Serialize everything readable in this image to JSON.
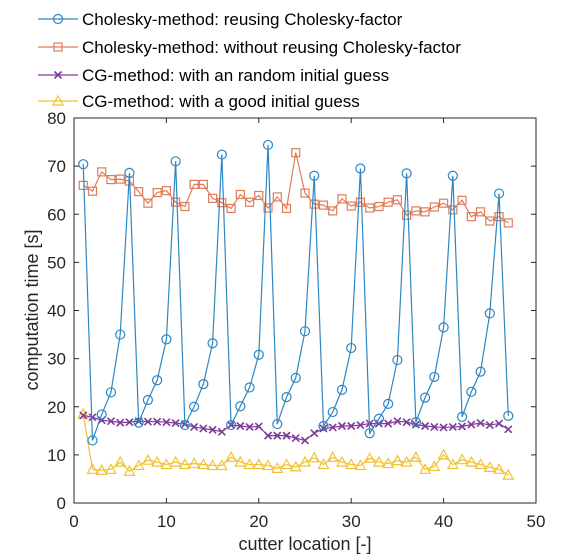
{
  "chart_data": {
    "type": "line",
    "xlabel": "cutter location [-]",
    "ylabel": "computation time [s]",
    "xlim": [
      0,
      50
    ],
    "ylim": [
      0,
      80
    ],
    "xticks": [
      0,
      10,
      20,
      30,
      40,
      50
    ],
    "yticks": [
      0,
      10,
      20,
      30,
      40,
      50,
      60,
      70,
      80
    ],
    "grid": false,
    "legend_position": "top-left, above plot",
    "series": [
      {
        "name": "Cholesky-method: reusing Cholesky-factor",
        "color": "#2e86c1",
        "marker": "circle",
        "x": [
          1,
          2,
          3,
          4,
          5,
          6,
          7,
          8,
          9,
          10,
          11,
          12,
          13,
          14,
          15,
          16,
          17,
          18,
          19,
          20,
          21,
          22,
          23,
          24,
          25,
          26,
          27,
          28,
          29,
          30,
          31,
          32,
          33,
          34,
          35,
          36,
          37,
          38,
          39,
          40,
          41,
          42,
          43,
          44,
          45,
          46,
          47
        ],
        "y": [
          70.4,
          13,
          18.4,
          23,
          35,
          68.6,
          16.7,
          21.4,
          25.5,
          34,
          71,
          16.2,
          20,
          24.7,
          33.2,
          72.4,
          16.2,
          20.1,
          24,
          30.8,
          74.4,
          16.4,
          22,
          26,
          35.7,
          68,
          16,
          18.9,
          23.5,
          32.2,
          69.5,
          14.5,
          17.5,
          20.6,
          29.7,
          68.5,
          16.8,
          21.9,
          26.2,
          36.5,
          68,
          17.9,
          23.1,
          27.3,
          39.4,
          64.3,
          18.1
        ]
      },
      {
        "name": "Cholesky-method: without reusing Cholesky-factor",
        "color": "#e07b5a",
        "marker": "square",
        "x": [
          1,
          2,
          3,
          4,
          5,
          6,
          7,
          8,
          9,
          10,
          11,
          12,
          13,
          14,
          15,
          16,
          17,
          18,
          19,
          20,
          21,
          22,
          23,
          24,
          25,
          26,
          27,
          28,
          29,
          30,
          31,
          32,
          33,
          34,
          35,
          36,
          37,
          38,
          39,
          40,
          41,
          42,
          43,
          44,
          45,
          46,
          47
        ],
        "y": [
          66,
          64.8,
          68.8,
          67.2,
          67.3,
          66.9,
          64.7,
          62.3,
          64.5,
          64.9,
          62.5,
          61.6,
          66.2,
          66.2,
          63.3,
          62.4,
          61.2,
          64.1,
          62.5,
          63.9,
          61.3,
          63.6,
          61.2,
          72.8,
          64.4,
          62.1,
          61.9,
          60.7,
          63.2,
          61.7,
          62.5,
          61.3,
          61.6,
          62.5,
          63,
          59.8,
          60.7,
          60.5,
          61.5,
          62.3,
          60.9,
          62.9,
          59.5,
          60.5,
          58.6,
          59.5,
          58.2
        ]
      },
      {
        "name": "CG-method: with an random initial guess",
        "color": "#7d3c98",
        "marker": "x",
        "x": [
          1,
          2,
          3,
          4,
          5,
          6,
          7,
          8,
          9,
          10,
          11,
          12,
          13,
          14,
          15,
          16,
          17,
          18,
          19,
          20,
          21,
          22,
          23,
          24,
          25,
          26,
          27,
          28,
          29,
          30,
          31,
          32,
          33,
          34,
          35,
          36,
          37,
          38,
          39,
          40,
          41,
          42,
          43,
          44,
          45,
          46,
          47
        ],
        "y": [
          18.2,
          17.8,
          17.2,
          17,
          16.7,
          16.8,
          17,
          16.9,
          16.9,
          16.8,
          16.6,
          16.4,
          15.8,
          15.5,
          15.2,
          14.8,
          16.2,
          16,
          15.8,
          15.9,
          14,
          14,
          14,
          13.5,
          13,
          14.5,
          15.5,
          15.7,
          16,
          16,
          16.2,
          16.5,
          16.5,
          16.5,
          17,
          16.8,
          16.3,
          16,
          15.8,
          15.7,
          15.8,
          15.9,
          16.3,
          16.6,
          16.2,
          16.5,
          15.3
        ]
      },
      {
        "name": "CG-method: with a good initial guess",
        "color": "#f1c232",
        "marker": "triangle",
        "x": [
          1,
          2,
          3,
          4,
          5,
          6,
          7,
          8,
          9,
          10,
          11,
          12,
          13,
          14,
          15,
          16,
          17,
          18,
          19,
          20,
          21,
          22,
          23,
          24,
          25,
          26,
          27,
          28,
          29,
          30,
          31,
          32,
          33,
          34,
          35,
          36,
          37,
          38,
          39,
          40,
          41,
          42,
          43,
          44,
          45,
          46,
          47
        ],
        "y": [
          18.5,
          7,
          6.8,
          7,
          8.5,
          6.6,
          7.8,
          8.9,
          8.5,
          8,
          8.5,
          8,
          8.2,
          8,
          7.8,
          7.8,
          9.5,
          8.5,
          8,
          8,
          7.8,
          7.2,
          8,
          7.5,
          8.5,
          9.4,
          8,
          9.5,
          8.5,
          8,
          7.8,
          9.3,
          8.5,
          8.2,
          8.8,
          8.5,
          9.5,
          7,
          7.6,
          10,
          8,
          9,
          8.5,
          8,
          7.4,
          7,
          5.8
        ]
      }
    ]
  }
}
